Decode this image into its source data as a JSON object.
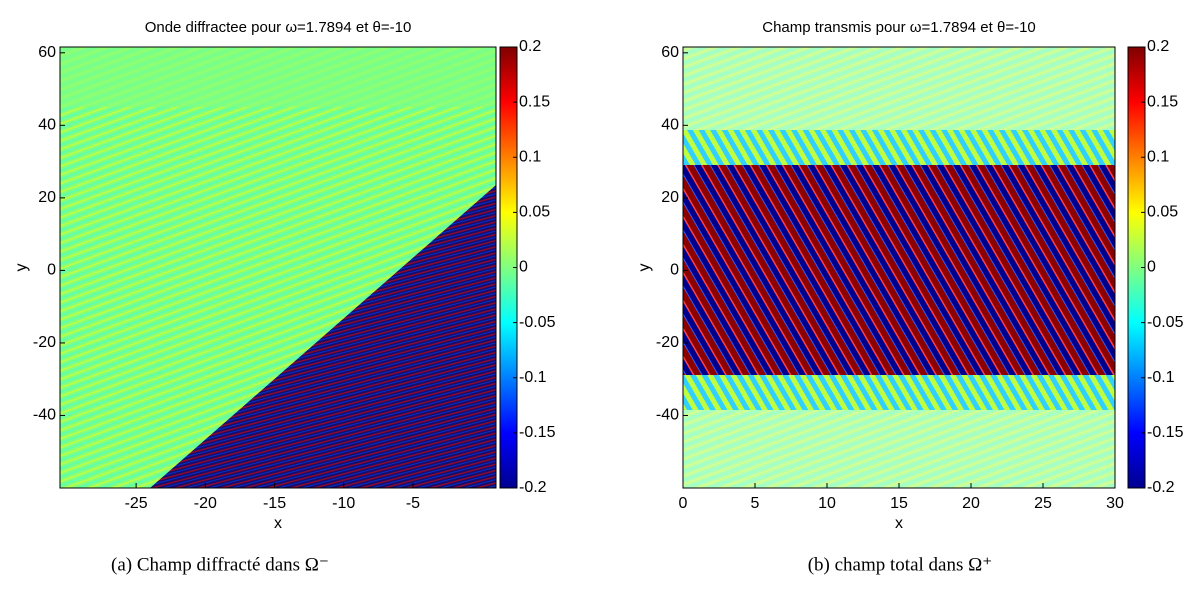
{
  "chart_data": [
    {
      "type": "heatmap",
      "title": "Onde diffractee pour ω=1.7894 et θ=-10",
      "x_label": "x",
      "y_label": "y",
      "xlim": [
        -30.5,
        1
      ],
      "xticks": [
        -25,
        -20,
        -15,
        -10,
        -5
      ],
      "ylim": [
        -60,
        61.6
      ],
      "yticks": [
        -40,
        -20,
        0,
        20,
        40,
        60
      ],
      "clim": [
        -0.2,
        0.2
      ],
      "cticks": [
        -0.2,
        -0.15,
        -0.1,
        -0.05,
        0,
        0.05,
        0.1,
        0.15,
        0.2
      ]
    },
    {
      "type": "heatmap",
      "title": "Champ transmis pour ω=1.7894 et θ=-10",
      "x_label": "x",
      "y_label": "y",
      "xlim": [
        0,
        30
      ],
      "xticks": [
        0,
        5,
        10,
        15,
        20,
        25,
        30
      ],
      "ylim": [
        -60,
        61.6
      ],
      "yticks": [
        -40,
        -20,
        0,
        20,
        40,
        60
      ],
      "clim": [
        -0.2,
        0.2
      ],
      "cticks": [
        -0.2,
        -0.15,
        -0.1,
        -0.05,
        0,
        0.05,
        0.1,
        0.15,
        0.2
      ]
    }
  ],
  "captions": [
    "(a)  Champ diffracté dans Ω⁻",
    "(b)  champ total dans Ω⁺"
  ]
}
